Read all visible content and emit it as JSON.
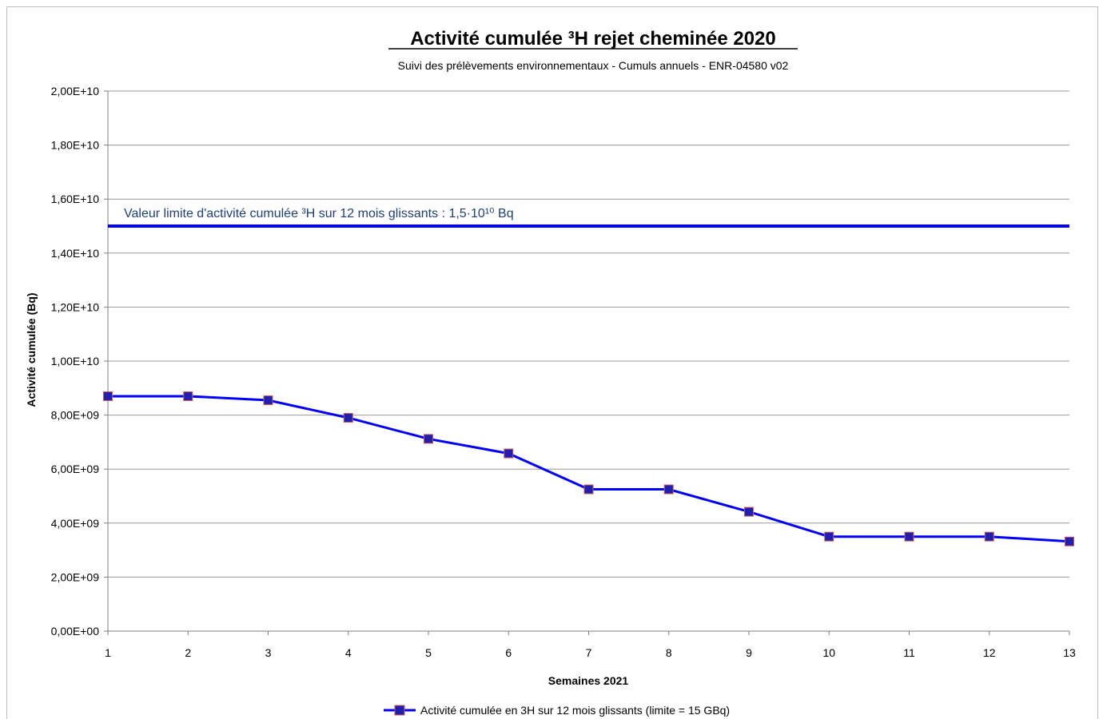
{
  "chart_data": {
    "type": "line",
    "title": "Activité cumulée ³H rejet cheminée 2020",
    "subtitle": "Suivi des prélèvements environnementaux - Cumuls annuels - ENR-04580 v02",
    "xlabel": "Semaines 2021",
    "ylabel": "Activité cumulée (Bq)",
    "x": [
      1,
      2,
      3,
      4,
      5,
      6,
      7,
      8,
      9,
      10,
      11,
      12,
      13
    ],
    "ylim": [
      0,
      20000000000
    ],
    "yticks": [
      0,
      2000000000,
      4000000000,
      6000000000,
      8000000000,
      10000000000,
      12000000000,
      14000000000,
      16000000000,
      18000000000,
      20000000000
    ],
    "ytick_labels": [
      "0,00E+00",
      "2,00E+09",
      "4,00E+09",
      "6,00E+09",
      "8,00E+09",
      "1,00E+10",
      "1,20E+10",
      "1,40E+10",
      "1,60E+10",
      "1,80E+10",
      "2,00E+10"
    ],
    "grid": true,
    "series": [
      {
        "name": "Activité cumulée en 3H sur 12 mois glissants (limite = 15 GBq)",
        "values": [
          8700000000,
          8700000000,
          8550000000,
          7900000000,
          7120000000,
          6580000000,
          5250000000,
          5250000000,
          4420000000,
          3500000000,
          3500000000,
          3500000000,
          3320000000
        ],
        "color": "#0000ff",
        "marker_fill": "#1f1fb0",
        "marker_edge": "#d05a5a"
      }
    ],
    "limit": {
      "value": 15000000000,
      "label": "Valeur limite d'activité cumulée ³H sur 12 mois glissants : 1,5·10¹⁰ Bq",
      "color": "#0000ff"
    },
    "legend_position": "bottom"
  }
}
